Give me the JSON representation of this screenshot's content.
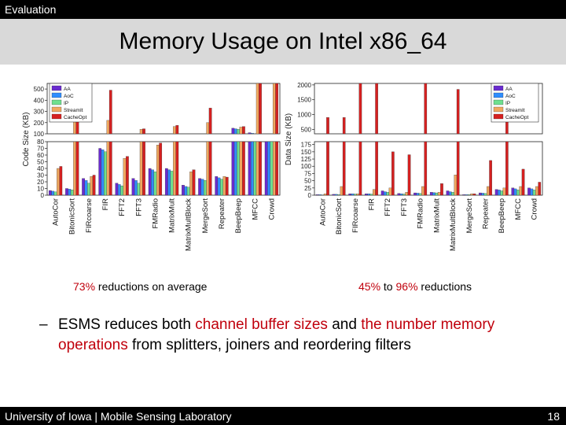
{
  "header": {
    "section": "Evaluation",
    "title": "Memory Usage on Intel x86_64"
  },
  "captions": {
    "left": {
      "pct": "73%",
      "rest": " reductions on average"
    },
    "right": {
      "pct1": "45%",
      "mid": " to ",
      "pct2": "96%",
      "rest": " reductions"
    }
  },
  "bullet": {
    "dash": "–",
    "t1": "ESMS reduces both ",
    "h1": "channel buffer sizes",
    "t2": " and ",
    "h2": "the number memory operations",
    "t3": " from splitters, joiners and reordering filters"
  },
  "footer": {
    "org": "University of Iowa | Mobile Sensing Laboratory",
    "page": "18"
  },
  "chart_data": [
    {
      "type": "bar",
      "ylabel": "Code Size (KB)",
      "categories": [
        "AutoCor",
        "BitonicSort",
        "FIRcoarse",
        "FIR",
        "FFT2",
        "FFT3",
        "FMRadio",
        "MatrixMult",
        "MatrixMultBlock",
        "MergeSort",
        "Repeater",
        "BeepBeep",
        "MFCC",
        "Crowd"
      ],
      "lower_ticks": [
        0,
        10,
        20,
        30,
        40,
        50,
        60,
        70,
        80
      ],
      "upper_ticks": [
        100,
        200,
        300,
        400,
        500
      ],
      "lower_ylim": [
        0,
        80
      ],
      "upper_ylim": [
        100,
        550
      ],
      "legend_position": "top-left",
      "series": [
        {
          "name": "AA",
          "color": "#6a2bd0",
          "values": [
            7,
            10,
            25,
            70,
            18,
            25,
            40,
            40,
            15,
            25,
            28,
            150,
            110,
            100
          ]
        },
        {
          "name": "AoC",
          "color": "#2f8dff",
          "values": [
            6,
            9,
            22,
            68,
            16,
            22,
            38,
            38,
            13,
            24,
            26,
            145,
            105,
            95
          ]
        },
        {
          "name": "IP",
          "color": "#6ee08f",
          "values": [
            5,
            8,
            18,
            65,
            14,
            18,
            35,
            36,
            12,
            22,
            24,
            140,
            100,
            90
          ]
        },
        {
          "name": "StreamIt",
          "color": "#f0a860",
          "values": [
            40,
            390,
            28,
            220,
            55,
            140,
            75,
            165,
            35,
            200,
            28,
            160,
            560,
            560
          ]
        },
        {
          "name": "CacheOpt",
          "color": "#d62020",
          "values": [
            43,
            380,
            30,
            490,
            58,
            145,
            78,
            175,
            38,
            330,
            27,
            165,
            555,
            555
          ]
        }
      ]
    },
    {
      "type": "bar",
      "ylabel": "Data Size (KB)",
      "categories": [
        "AutoCor",
        "BitonicSort",
        "FIRcoarse",
        "FIR",
        "FFT2",
        "FFT3",
        "FMRadio",
        "MatrixMult",
        "MatrixMultBlock",
        "MergeSort",
        "Repeater",
        "BeepBeep",
        "MFCC",
        "Crowd"
      ],
      "lower_ticks": [
        0,
        25,
        50,
        75,
        100,
        125,
        150,
        175
      ],
      "upper_ticks": [
        500,
        1000,
        1500,
        2000
      ],
      "lower_ylim": [
        0,
        185
      ],
      "upper_ylim": [
        350,
        2050
      ],
      "legend_position": "top-right",
      "series": [
        {
          "name": "AA",
          "color": "#6a2bd0",
          "values": [
            2,
            3,
            5,
            5,
            15,
            6,
            8,
            10,
            15,
            2,
            8,
            20,
            25,
            25
          ]
        },
        {
          "name": "AoC",
          "color": "#2f8dff",
          "values": [
            2,
            3,
            5,
            5,
            12,
            5,
            7,
            9,
            12,
            2,
            7,
            18,
            22,
            22
          ]
        },
        {
          "name": "IP",
          "color": "#6ee08f",
          "values": [
            1,
            2,
            4,
            4,
            10,
            4,
            6,
            8,
            10,
            2,
            6,
            15,
            18,
            18
          ]
        },
        {
          "name": "StreamIt",
          "color": "#f0a860",
          "values": [
            5,
            30,
            5,
            20,
            25,
            10,
            30,
            10,
            70,
            5,
            30,
            25,
            30,
            30
          ]
        },
        {
          "name": "CacheOpt",
          "color": "#d62020",
          "values": [
            900,
            900,
            2050,
            2050,
            150,
            140,
            2050,
            40,
            1850,
            5,
            120,
            1850,
            90,
            45
          ]
        }
      ]
    }
  ],
  "legend_labels": [
    "AA",
    "AoC",
    "IP",
    "StreamIt",
    "CacheOpt"
  ]
}
